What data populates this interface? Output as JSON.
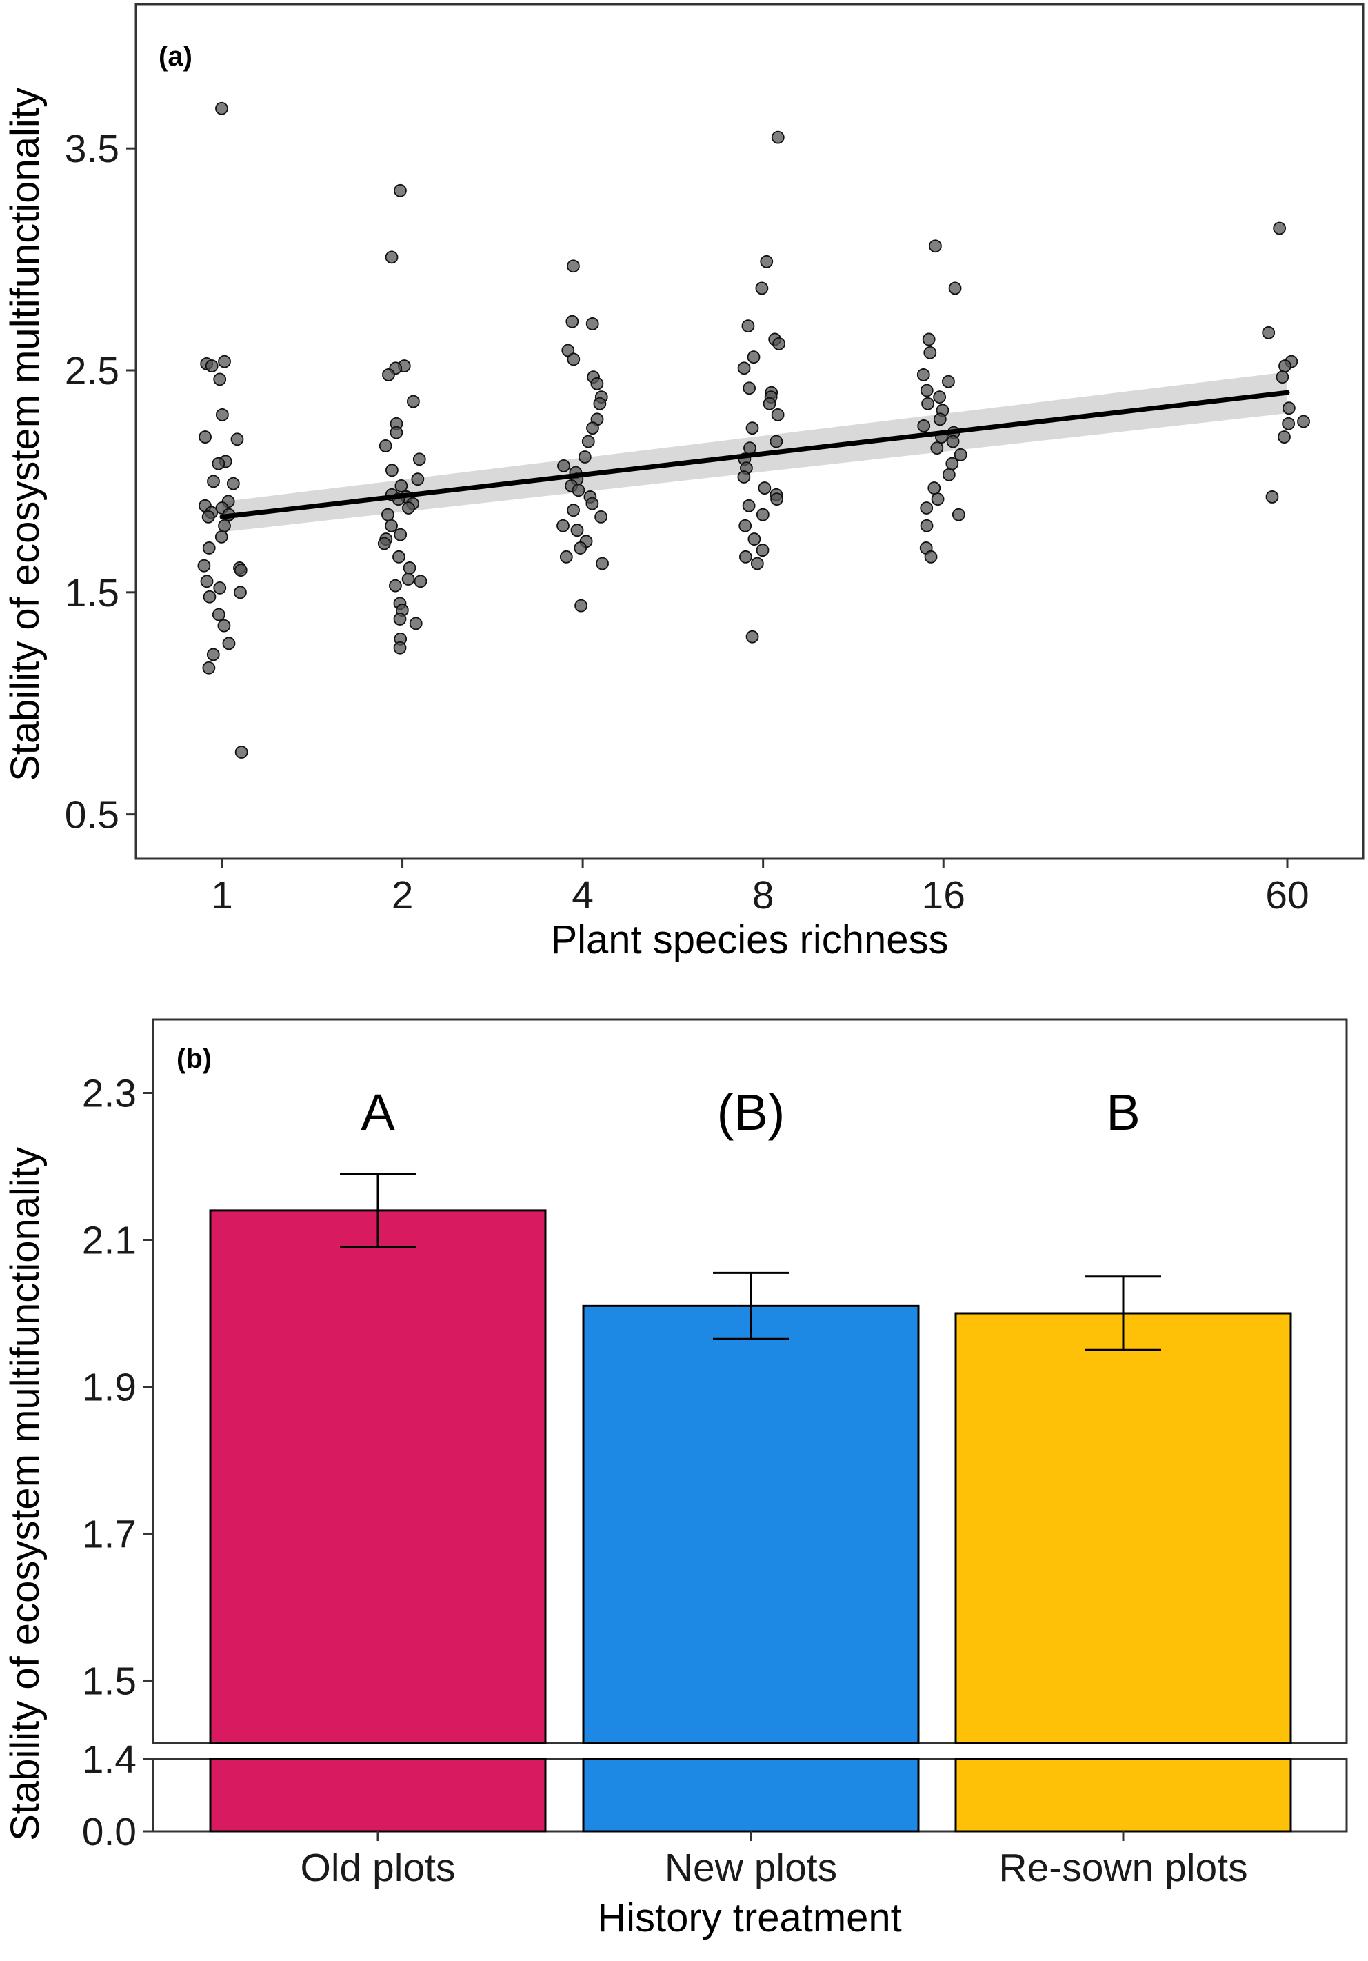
{
  "chart_data": [
    {
      "panel": "(a)",
      "type": "scatter",
      "xlabel": "Plant species richness",
      "ylabel": "Stability of ecosystem multifunctionality",
      "x_scale": "log2",
      "x_ticks": [
        1,
        2,
        4,
        8,
        16,
        60
      ],
      "x_tick_labels": [
        "1",
        "2",
        "4",
        "8",
        "16",
        "60"
      ],
      "y_ticks": [
        0.5,
        1.5,
        2.5,
        3.5
      ],
      "y_tick_labels": [
        "0.5",
        "1.5",
        "2.5",
        "3.5"
      ],
      "ylim": [
        0.3,
        4.15
      ],
      "grid": false,
      "point_color": "#555555",
      "points": [
        {
          "x": 1,
          "values": [
            3.68,
            2.54,
            2.53,
            2.52,
            2.46,
            2.3,
            2.2,
            2.19,
            2.09,
            2.08,
            2.0,
            1.99,
            1.91,
            1.89,
            1.88,
            1.86,
            1.85,
            1.84,
            1.8,
            1.75,
            1.7,
            1.62,
            1.61,
            1.6,
            1.55,
            1.52,
            1.5,
            1.48,
            1.4,
            1.35,
            1.27,
            1.22,
            1.16,
            0.78
          ]
        },
        {
          "x": 2,
          "values": [
            3.31,
            3.01,
            2.52,
            2.51,
            2.48,
            2.36,
            2.26,
            2.22,
            2.16,
            2.1,
            2.05,
            2.01,
            1.98,
            1.94,
            1.93,
            1.92,
            1.9,
            1.88,
            1.85,
            1.8,
            1.76,
            1.74,
            1.72,
            1.66,
            1.61,
            1.56,
            1.55,
            1.53,
            1.45,
            1.42,
            1.38,
            1.36,
            1.29,
            1.25
          ]
        },
        {
          "x": 4,
          "values": [
            2.97,
            2.72,
            2.71,
            2.59,
            2.55,
            2.47,
            2.44,
            2.38,
            2.35,
            2.28,
            2.24,
            2.18,
            2.11,
            2.07,
            2.04,
            2.01,
            1.98,
            1.96,
            1.93,
            1.9,
            1.87,
            1.84,
            1.8,
            1.78,
            1.73,
            1.7,
            1.66,
            1.63,
            1.44
          ]
        },
        {
          "x": 8,
          "values": [
            3.55,
            2.99,
            2.87,
            2.7,
            2.64,
            2.62,
            2.56,
            2.51,
            2.42,
            2.4,
            2.38,
            2.35,
            2.3,
            2.24,
            2.18,
            2.15,
            2.1,
            2.06,
            2.02,
            1.97,
            1.94,
            1.92,
            1.89,
            1.85,
            1.8,
            1.74,
            1.69,
            1.66,
            1.63,
            1.3
          ]
        },
        {
          "x": 16,
          "values": [
            3.06,
            2.87,
            2.64,
            2.58,
            2.48,
            2.45,
            2.41,
            2.38,
            2.35,
            2.32,
            2.28,
            2.25,
            2.22,
            2.2,
            2.18,
            2.15,
            2.12,
            2.08,
            2.03,
            1.97,
            1.92,
            1.88,
            1.85,
            1.8,
            1.7,
            1.66
          ]
        },
        {
          "x": 60,
          "values": [
            3.14,
            2.67,
            2.54,
            2.52,
            2.47,
            2.33,
            2.27,
            2.26,
            2.2,
            1.93
          ]
        }
      ],
      "regression_line": {
        "x": [
          1,
          60
        ],
        "y": [
          1.84,
          2.4
        ],
        "color": "#000000",
        "band_color": "#cccccc"
      }
    },
    {
      "panel": "(b)",
      "type": "bar",
      "xlabel": "History treatment",
      "ylabel": "Stability of ecosystem multifunctionality",
      "categories": [
        "Old plots",
        "New plots",
        "Re-sown plots"
      ],
      "values": [
        2.14,
        2.01,
        2.0
      ],
      "error_bars": [
        [
          2.09,
          2.19
        ],
        [
          1.965,
          2.055
        ],
        [
          1.95,
          2.05
        ]
      ],
      "significance_labels": [
        "A",
        "(B)",
        "B"
      ],
      "colors": [
        "#d81b60",
        "#1e88e5",
        "#ffc107"
      ],
      "y_axis_break": true,
      "y_ticks_upper": [
        1.5,
        1.7,
        1.9,
        2.1,
        2.3
      ],
      "y_tick_labels_upper": [
        "1.5",
        "1.7",
        "1.9",
        "2.1",
        "2.3"
      ],
      "y_ticks_lower": [
        0.0,
        1.4
      ],
      "y_tick_labels_lower": [
        "0.0",
        "1.4"
      ],
      "ylim_upper": [
        1.415,
        2.4
      ],
      "ylim_lower": [
        0.0,
        1.4
      ],
      "grid": false
    }
  ]
}
